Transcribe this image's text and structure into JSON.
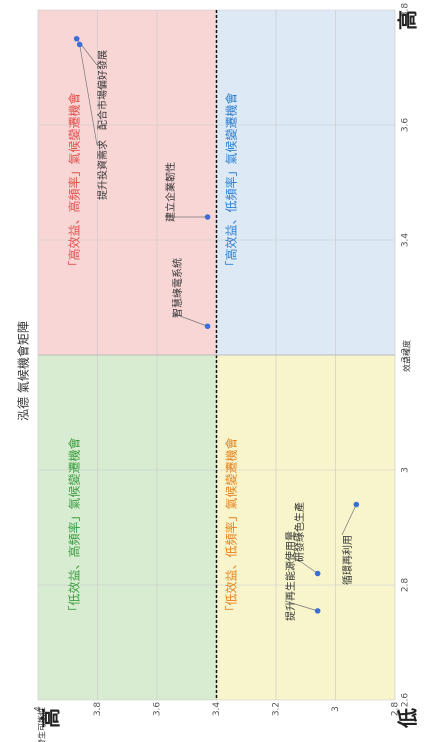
{
  "chart_data": {
    "type": "scatter",
    "title": "泓德 氣候機會矩陣",
    "xlabel": "效益程度",
    "ylabel": "發生可能性",
    "xlim": [
      2.6,
      3.8
    ],
    "ylim": [
      2.8,
      4
    ],
    "xticks": [
      2.6,
      2.8,
      3,
      3.2,
      3.4,
      3.6,
      3.8
    ],
    "yticks": [
      2.8,
      3,
      3.2,
      3.4,
      3.6,
      3.8,
      4
    ],
    "quadrant_x": 3.2,
    "quadrant_y": 3.4,
    "quadrants": [
      {
        "label": "「高效益、高頻率」氣候變遷機會",
        "color": "#e0504a",
        "background": "#f9d6d6"
      },
      {
        "label": "「低效益、高頻率」氣候變遷機會",
        "color": "#3a9e3e",
        "background": "#d8ecd2"
      },
      {
        "label": "「高效益、低頻率」氣候變遷機會",
        "color": "#2d7fd0",
        "background": "#dde9f5"
      },
      {
        "label": "「低效益、低頻率」氣候變遷機會",
        "color": "#e6821e",
        "background": "#f8f5cd"
      }
    ],
    "high_label": "高",
    "low_label": "低",
    "series": [
      {
        "name": "氣候機會",
        "color": "#3b6fd6",
        "labels": [
          "配合市場偏好發展",
          "提升投資需求",
          "建立企業韌性",
          "智慧綠電系統",
          "提升再生能源使用量",
          "研發綠色生產",
          "循環再利用"
        ],
        "x": [
          3.75,
          3.74,
          3.44,
          3.25,
          2.755,
          2.82,
          2.94
        ],
        "values": [
          3.87,
          3.86,
          3.43,
          3.43,
          3.06,
          3.06,
          2.93
        ]
      }
    ]
  }
}
